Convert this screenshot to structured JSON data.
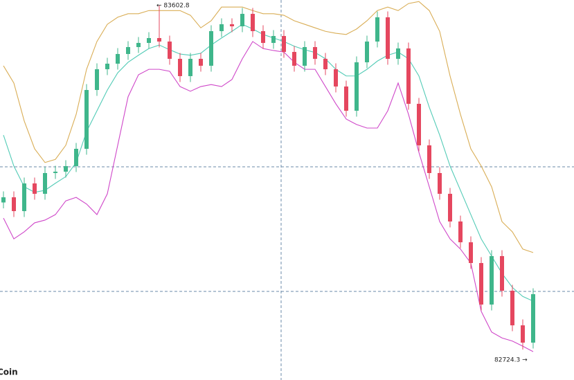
{
  "chart_data": {
    "type": "candlestick",
    "ylim": [
      82646.6,
      83617
    ],
    "up_color": "#3fb68b",
    "down_color": "#e5475f",
    "open": [
      83100.0,
      83113.2,
      83077.9,
      83148.6,
      83122.1,
      83175.1,
      83178.6,
      83192.8,
      83237.0,
      83387.2,
      83440.2,
      83454.4,
      83479.1,
      83496.8,
      83507.4,
      83519.8,
      83510.9,
      83466.8,
      83422.6,
      83466.8,
      83449.1,
      83537.5,
      83555.1,
      83549.8,
      83581.6,
      83537.5,
      83507.4,
      83525.1,
      83484.4,
      83449.1,
      83496.8,
      83466.8,
      83440.2,
      83396.1,
      83334.2,
      83457.9,
      83510.9,
      83572.8,
      83466.8,
      83493.3,
      83351.9,
      83245.8,
      83175.1,
      83122.1,
      83051.4,
      82998.3,
      82945.3,
      82839.3,
      82963.0,
      82874.6,
      82786.2,
      82742.0
    ],
    "high": [
      83128.2,
      83128.2,
      83163.6,
      83163.6,
      83190.1,
      83193.6,
      83207.8,
      83252.0,
      83402.2,
      83455.2,
      83469.4,
      83494.1,
      83511.8,
      83522.4,
      83534.8,
      83602.8,
      83525.9,
      83481.8,
      83481.8,
      83481.8,
      83552.5,
      83570.1,
      83570.1,
      83596.6,
      83596.6,
      83552.5,
      83540.1,
      83540.1,
      83499.4,
      83511.8,
      83511.8,
      83481.8,
      83455.2,
      83411.1,
      83472.9,
      83525.9,
      83587.8,
      83587.8,
      83508.3,
      83508.3,
      83366.9,
      83260.8,
      83190.1,
      83137.1,
      83066.4,
      83013.3,
      82960.3,
      82978.0,
      82978.0,
      82889.6,
      82801.2,
      82880.8
    ],
    "low": [
      83085.0,
      83062.9,
      83062.9,
      83107.1,
      83107.1,
      83160.1,
      83163.6,
      83177.8,
      83222.0,
      83372.2,
      83425.2,
      83439.4,
      83464.1,
      83481.8,
      83492.4,
      83495.9,
      83451.8,
      83407.6,
      83407.6,
      83434.1,
      83434.1,
      83522.5,
      83534.8,
      83534.8,
      83522.5,
      83492.4,
      83492.4,
      83469.4,
      83434.1,
      83434.1,
      83451.8,
      83425.2,
      83381.1,
      83319.2,
      83319.2,
      83442.9,
      83495.9,
      83451.8,
      83451.8,
      83336.9,
      83230.8,
      83160.1,
      83107.1,
      83036.4,
      82983.3,
      82930.3,
      82824.3,
      82824.3,
      82859.6,
      82771.2,
      82724.3,
      82727.0
    ],
    "close": [
      83113.2,
      83077.9,
      83148.6,
      83122.1,
      83175.1,
      83178.6,
      83192.8,
      83237.0,
      83387.2,
      83440.2,
      83454.4,
      83479.1,
      83496.8,
      83507.4,
      83519.8,
      83510.9,
      83466.8,
      83422.6,
      83466.8,
      83449.1,
      83537.5,
      83555.1,
      83549.8,
      83581.6,
      83537.5,
      83507.4,
      83525.1,
      83484.4,
      83449.1,
      83496.8,
      83466.8,
      83440.2,
      83396.1,
      83334.2,
      83457.9,
      83510.9,
      83572.8,
      83466.8,
      83493.3,
      83351.9,
      83245.8,
      83175.1,
      83122.1,
      83051.4,
      82998.3,
      82945.3,
      82839.3,
      82963.0,
      82874.6,
      82786.2,
      82742.0,
      82865.8
    ],
    "series": [
      {
        "color": "#d9ad55",
        "values": [
          83449,
          83405,
          83308,
          83237,
          83202,
          83210,
          83246,
          83325,
          83440,
          83511,
          83555,
          83573,
          83582,
          83582,
          83590,
          83590,
          83590,
          83590,
          83578,
          83546,
          83564,
          83599,
          83599,
          83599,
          83590,
          83582,
          83582,
          83578,
          83564,
          83555,
          83546,
          83537,
          83532,
          83529,
          83543,
          83564,
          83590,
          83599,
          83590,
          83608,
          83613,
          83590,
          83537,
          83423,
          83325,
          83237,
          83193,
          83140,
          83051,
          83025,
          82981,
          82972
        ]
      },
      {
        "color": "#52cbb6",
        "values": [
          83272,
          83193,
          83140,
          83126,
          83131,
          83149,
          83166,
          83202,
          83281,
          83334,
          83387,
          83431,
          83458,
          83476,
          83493,
          83502,
          83490,
          83479,
          83476,
          83481,
          83502,
          83520,
          83537,
          83555,
          83543,
          83529,
          83520,
          83511,
          83499,
          83490,
          83483,
          83467,
          83440,
          83423,
          83423,
          83440,
          83461,
          83476,
          83484,
          83467,
          83423,
          83343,
          83272,
          83193,
          83131,
          83069,
          83007,
          82963,
          82919,
          82883,
          82860,
          82848
        ]
      },
      {
        "color": "#cf47c9",
        "values": [
          83060,
          83007,
          83025,
          83048,
          83055,
          83069,
          83104,
          83113,
          83096,
          83069,
          83122,
          83246,
          83370,
          83426,
          83440,
          83440,
          83435,
          83396,
          83384,
          83396,
          83401,
          83396,
          83414,
          83467,
          83511,
          83493,
          83488,
          83484,
          83458,
          83440,
          83440,
          83396,
          83352,
          83313,
          83299,
          83290,
          83290,
          83334,
          83405,
          83325,
          83228,
          83140,
          83051,
          83007,
          82981,
          82945,
          82822,
          82769,
          82754,
          82746,
          82733,
          82719
        ]
      }
    ],
    "annotations": [
      {
        "text": "← 83602.8"
      },
      {
        "text": "82724.3 →"
      }
    ],
    "watermark": "Coin"
  }
}
